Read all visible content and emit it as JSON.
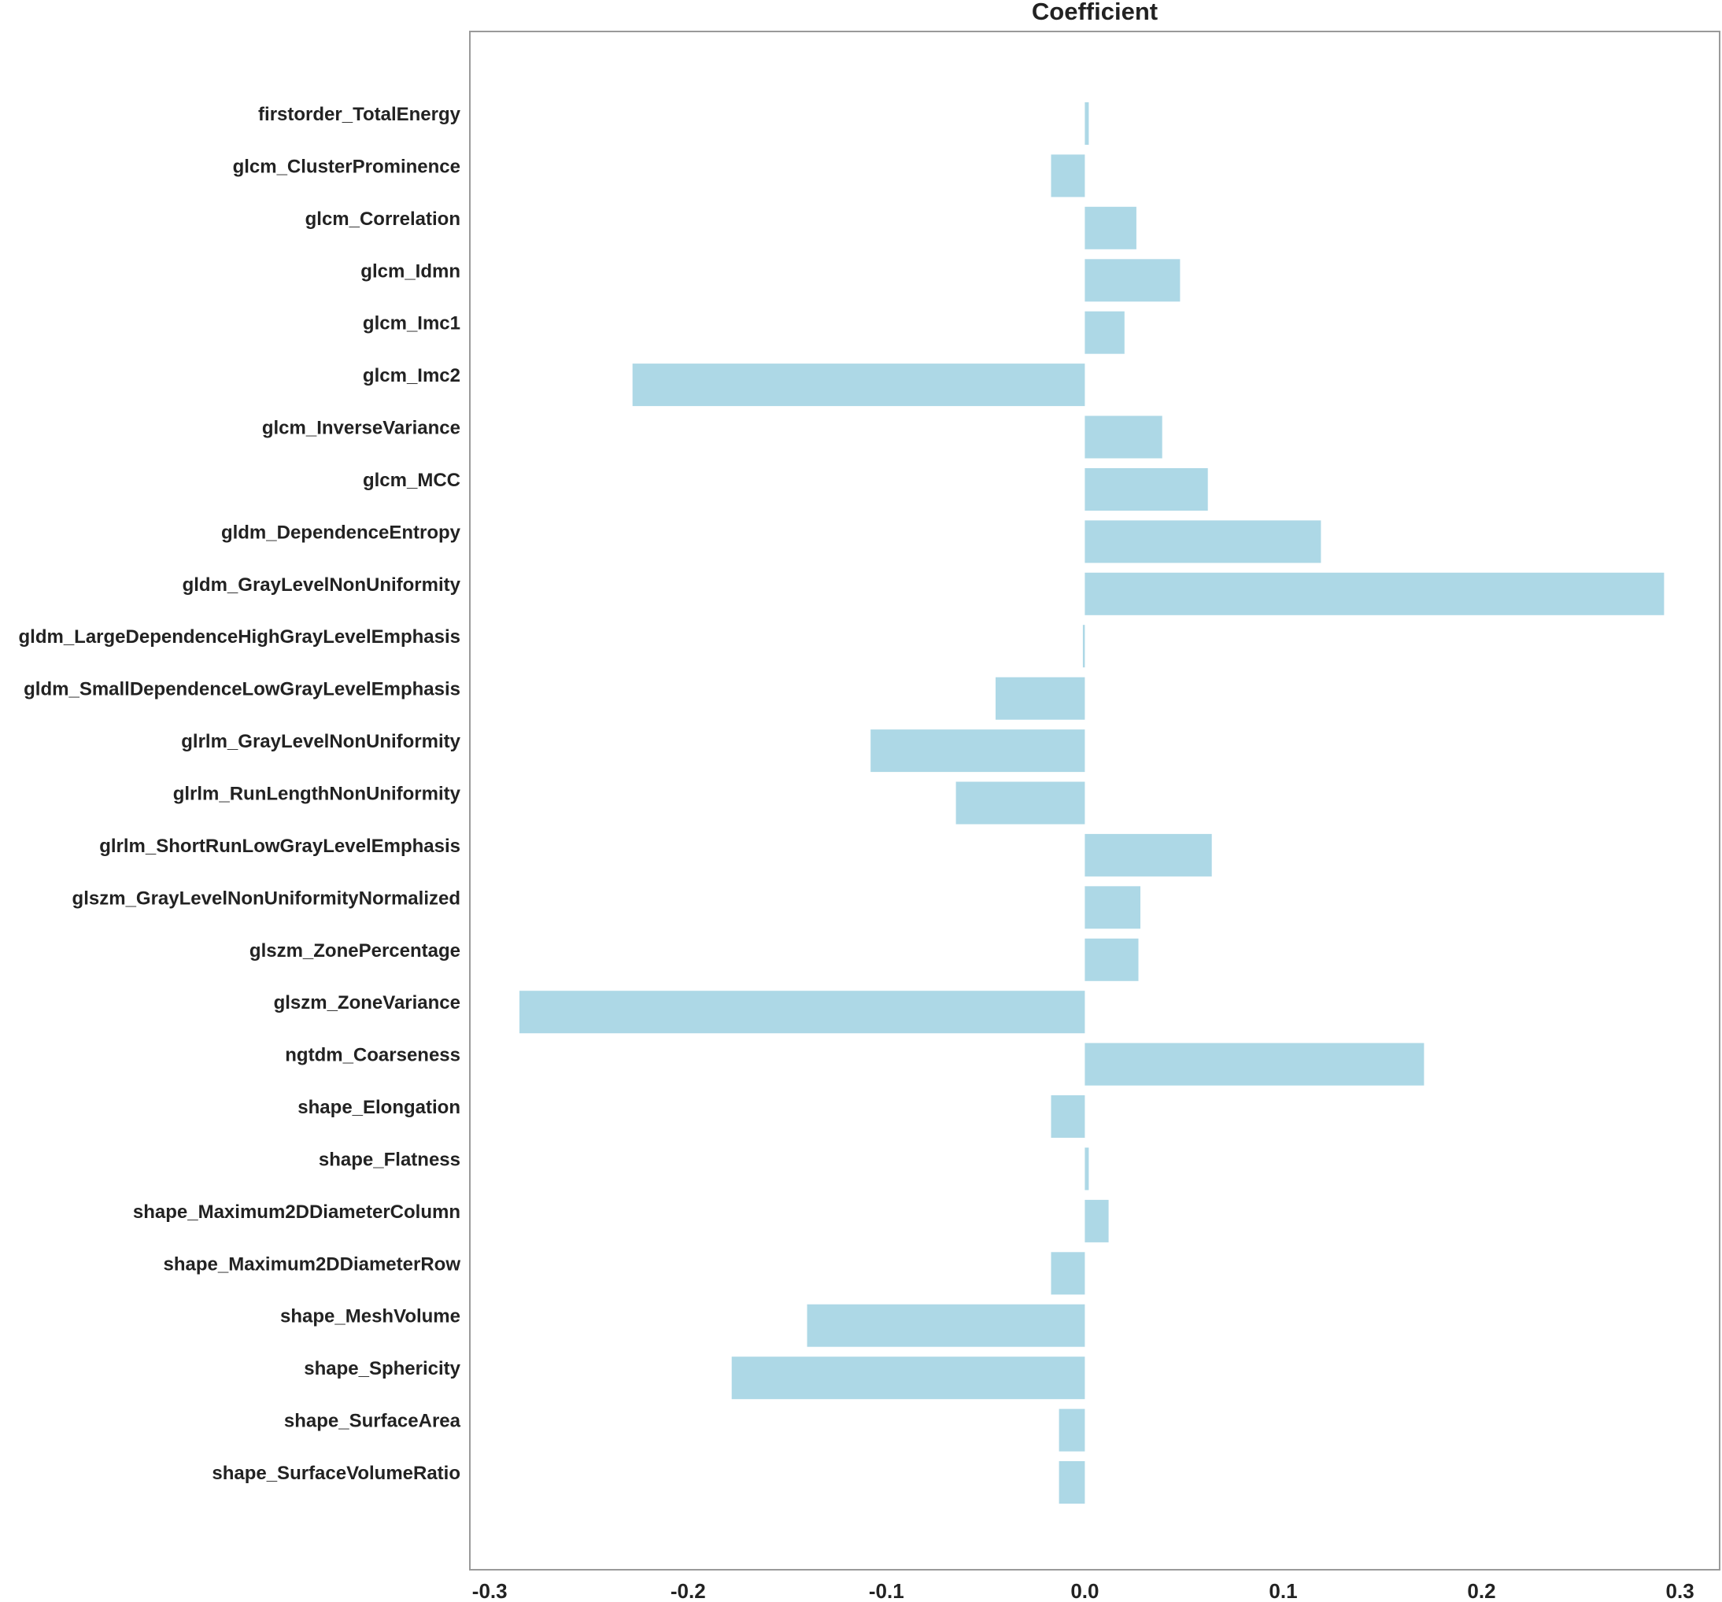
{
  "chart_data": {
    "type": "bar",
    "orientation": "horizontal",
    "title": "Coefficient",
    "xlim": [
      -0.31,
      0.32
    ],
    "x_ticks": [
      "-0.3",
      "-0.2",
      "-0.1",
      "0.0",
      "0.1",
      "0.2",
      "0.3"
    ],
    "x_tick_values": [
      -0.3,
      -0.2,
      -0.1,
      0.0,
      0.1,
      0.2,
      0.3
    ],
    "grid": false,
    "bar_color": "#ADD8E6",
    "categories": [
      "firstorder_TotalEnergy",
      "glcm_ClusterProminence",
      "glcm_Correlation",
      "glcm_Idmn",
      "glcm_Imc1",
      "glcm_Imc2",
      "glcm_InverseVariance",
      "glcm_MCC",
      "gldm_DependenceEntropy",
      "gldm_GrayLevelNonUniformity",
      "gldm_LargeDependenceHighGrayLevelEmphasis",
      "gldm_SmallDependenceLowGrayLevelEmphasis",
      "glrlm_GrayLevelNonUniformity",
      "glrlm_RunLengthNonUniformity",
      "glrlm_ShortRunLowGrayLevelEmphasis",
      "glszm_GrayLevelNonUniformityNormalized",
      "glszm_ZonePercentage",
      "glszm_ZoneVariance",
      "ngtdm_Coarseness",
      "shape_Elongation",
      "shape_Flatness",
      "shape_Maximum2DDiameterColumn",
      "shape_Maximum2DDiameterRow",
      "shape_MeshVolume",
      "shape_Sphericity",
      "shape_SurfaceArea",
      "shape_SurfaceVolumeRatio"
    ],
    "values": [
      0.002,
      -0.017,
      0.026,
      0.048,
      0.02,
      -0.228,
      0.039,
      0.062,
      0.119,
      0.292,
      -0.001,
      -0.045,
      -0.108,
      -0.065,
      0.064,
      0.028,
      0.027,
      -0.285,
      0.171,
      -0.017,
      0.002,
      0.012,
      -0.017,
      -0.14,
      -0.178,
      -0.013,
      -0.013
    ]
  }
}
